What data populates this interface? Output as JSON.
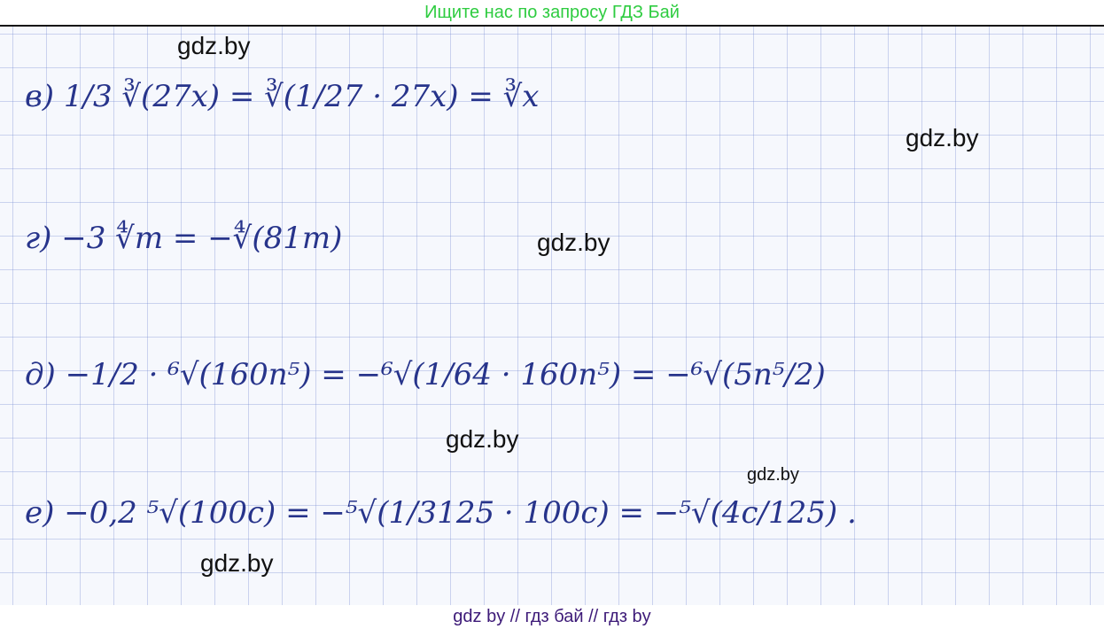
{
  "header": {
    "banner": "Ищите нас по запросу ГДЗ Бай"
  },
  "solution_lines": [
    "в) 1/3 ∛(27x) = ∛(1/27 · 27x) = ∛x",
    "г) −3 ∜m = −∜(81m)",
    "д) −1/2 · ⁶√(160n⁵) = −⁶√(1/64 · 160n⁵) = −⁶√(5n⁵/2)",
    "е) −0,2 ⁵√(100c) = −⁵√(1/3125 · 100c) = −⁵√(4c/125) ."
  ],
  "watermarks": [
    "gdz.by",
    "gdz.by",
    "gdz.by",
    "gdz.by",
    "gdz.by",
    "gdz.by"
  ],
  "footer": {
    "text": "gdz by  //  гдз бай  //  гдз by"
  },
  "colors": {
    "banner": "#2ecc40",
    "ink": "#27348b",
    "footer": "#3d1a78"
  }
}
